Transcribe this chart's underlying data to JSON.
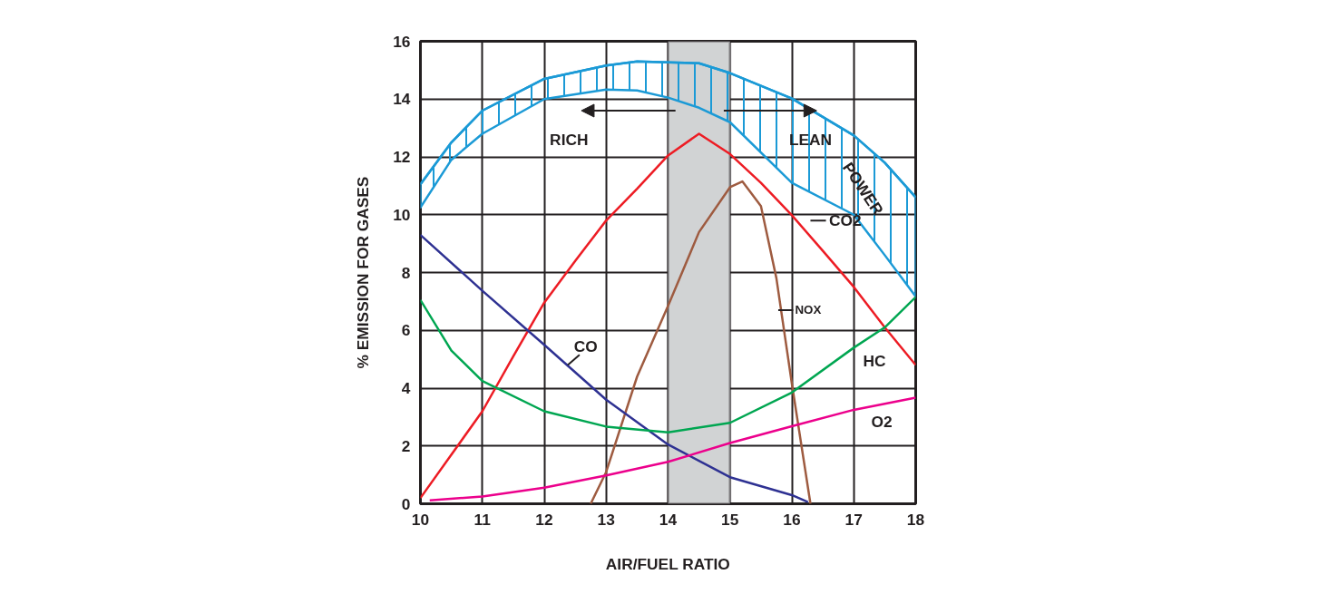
{
  "chart_data": {
    "type": "line",
    "xlabel": "AIR/FUEL RATIO",
    "ylabel": "% EMISSION FOR GASES",
    "xlim": [
      10,
      18
    ],
    "ylim": [
      0,
      16
    ],
    "xticks": [
      10,
      11,
      12,
      13,
      14,
      15,
      16,
      17,
      18
    ],
    "yticks": [
      0,
      2,
      4,
      6,
      8,
      10,
      12,
      14,
      16
    ],
    "grid": true,
    "series": [
      {
        "name": "POWER",
        "color": "#1b9ad6",
        "x": [
          10,
          10.5,
          11,
          12,
          13,
          13.5,
          14,
          14.5,
          15,
          16,
          17,
          17.5,
          18
        ],
        "values": [
          11.05,
          12.5,
          13.6,
          14.7,
          15.16,
          15.3,
          15.27,
          15.24,
          14.9,
          14.02,
          12.74,
          11.8,
          10.6
        ],
        "lower": [
          10.25,
          11.9,
          12.8,
          14.0,
          14.33,
          14.3,
          14.05,
          13.7,
          13.2,
          11.1,
          10.0,
          8.6,
          7.17
        ],
        "upper": [
          11.05,
          12.5,
          13.6,
          14.7,
          15.16,
          15.3,
          15.27,
          15.24,
          14.9,
          14.02,
          12.74,
          11.8,
          10.6
        ]
      },
      {
        "name": "CO2",
        "color": "#ed1c24",
        "x": [
          10,
          11,
          11.5,
          12,
          12.5,
          13,
          13.5,
          14,
          14.5,
          15,
          15.5,
          16,
          16.5,
          17,
          17.5,
          18
        ],
        "values": [
          0.2,
          3.2,
          5.1,
          6.96,
          8.4,
          9.8,
          10.9,
          12.05,
          12.8,
          12.1,
          11.1,
          9.98,
          8.75,
          7.5,
          6.1,
          4.8
        ]
      },
      {
        "name": "NOX",
        "color": "#9e5b40",
        "x": [
          12.75,
          13,
          13.5,
          14,
          14.5,
          15,
          15.2,
          15.5,
          15.75,
          16,
          16.3
        ],
        "values": [
          0,
          1.1,
          4.4,
          6.85,
          9.4,
          10.95,
          11.15,
          10.3,
          7.8,
          4.15,
          0
        ]
      },
      {
        "name": "CO",
        "color": "#2e3192",
        "x": [
          10,
          11,
          12,
          13,
          14,
          15,
          16,
          16.26
        ],
        "values": [
          9.3,
          7.37,
          5.5,
          3.6,
          2.05,
          0.92,
          0.3,
          0.06
        ]
      },
      {
        "name": "HC",
        "color": "#00a651",
        "x": [
          10,
          10.5,
          11,
          12,
          13,
          14,
          15,
          16,
          17,
          17.5,
          18
        ],
        "values": [
          7.05,
          5.3,
          4.25,
          3.2,
          2.67,
          2.47,
          2.8,
          3.85,
          5.4,
          6.1,
          7.15
        ]
      },
      {
        "name": "O2",
        "color": "#ec008c",
        "x": [
          10.15,
          11,
          12,
          13,
          14,
          15,
          16,
          17,
          18
        ],
        "values": [
          0.12,
          0.25,
          0.56,
          0.98,
          1.45,
          2.1,
          2.68,
          3.25,
          3.67
        ]
      }
    ],
    "bands": [
      {
        "axis": "x",
        "from": 14,
        "to": 15,
        "color": "#d1d3d4"
      }
    ],
    "annotations": [
      "RICH",
      "LEAN"
    ]
  }
}
